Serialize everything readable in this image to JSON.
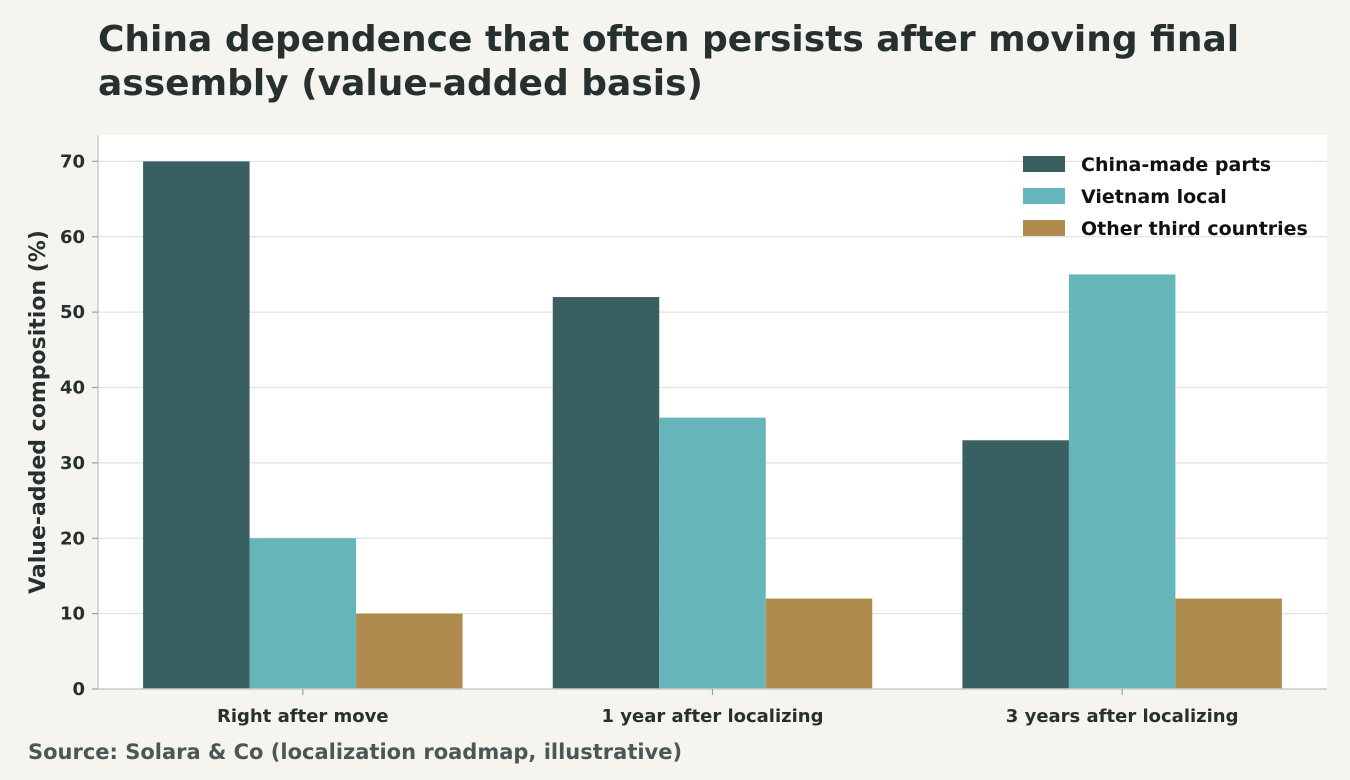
{
  "title": "China dependence that often persists after moving final assembly (value-added basis)",
  "source": "Source: Solara & Co (localization roadmap, illustrative)",
  "chart_data": {
    "type": "bar",
    "title": "China dependence that often persists after moving final assembly (value-added basis)",
    "xlabel": "",
    "ylabel": "Value-added composition (%)",
    "categories": [
      "Right after move",
      "1 year after localizing",
      "3 years after localizing"
    ],
    "series": [
      {
        "name": "China-made parts",
        "values": [
          70,
          52,
          33
        ],
        "color": "#3a5f61"
      },
      {
        "name": "Vietnam local",
        "values": [
          20,
          36,
          55
        ],
        "color": "#66b5ba"
      },
      {
        "name": "Other third countries",
        "values": [
          10,
          12,
          12
        ],
        "color": "#b08b4e"
      }
    ],
    "ylim": [
      0,
      73.5
    ],
    "yticks": [
      0,
      10,
      20,
      30,
      40,
      50,
      60,
      70
    ],
    "grid": true,
    "legend_position": "top-right"
  }
}
